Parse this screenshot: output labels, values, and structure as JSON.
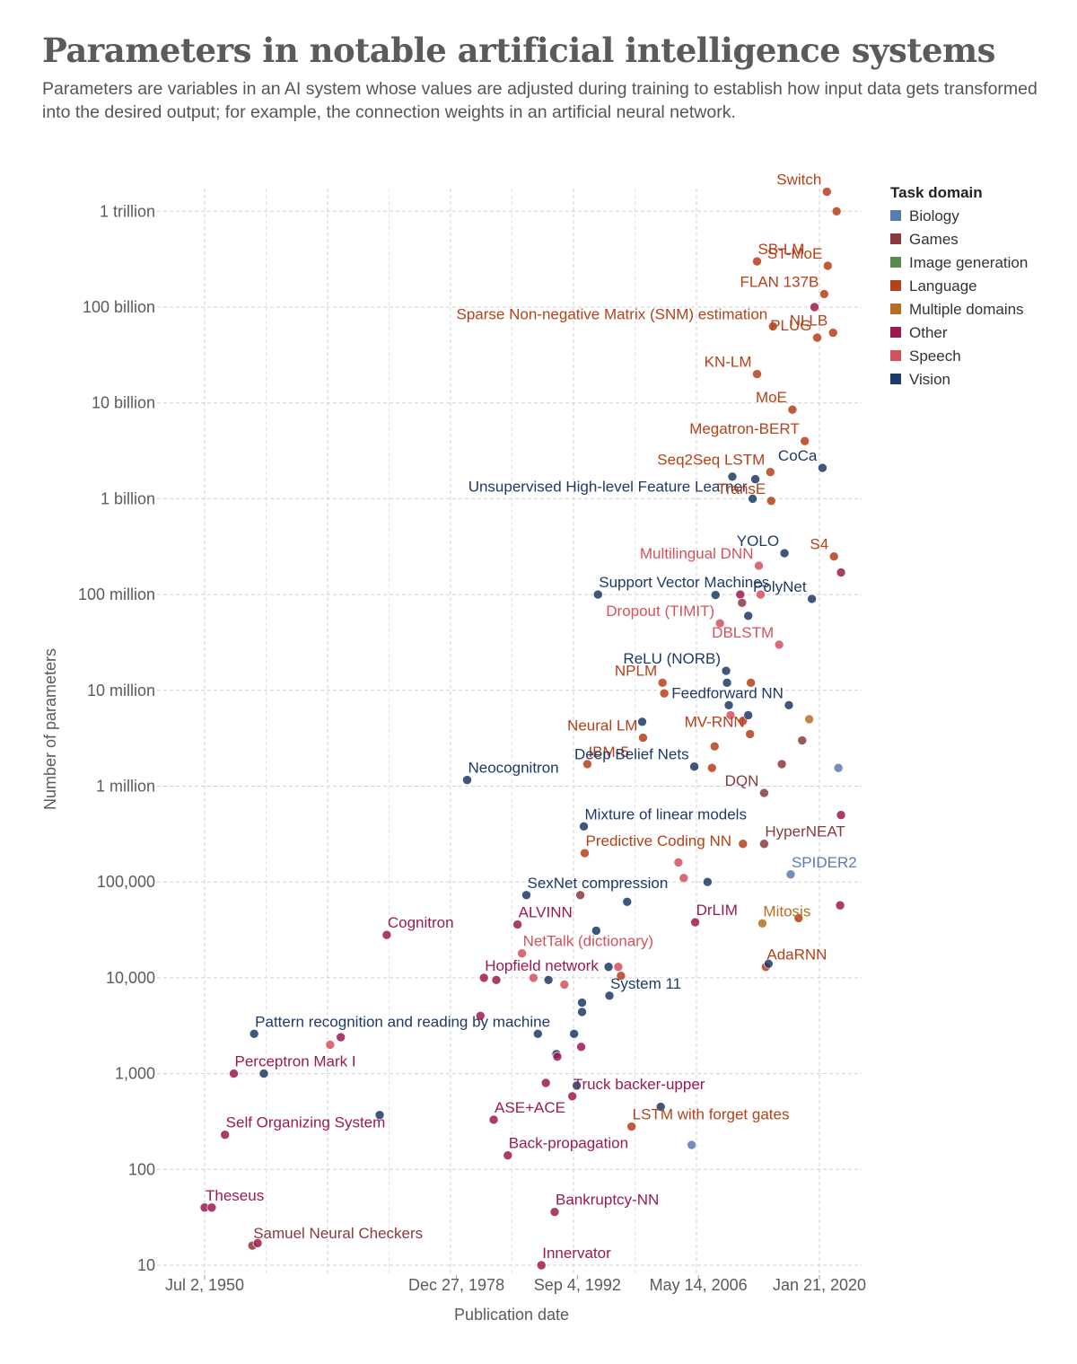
{
  "header": {
    "title": "Parameters in notable artificial intelligence systems",
    "subtitle": "Parameters are variables in an AI system whose values are adjusted during training to establish how input data gets transformed into the desired output; for example, the connection weights in an artificial neural network."
  },
  "chart_data": {
    "type": "scatter",
    "xlabel": "Publication date",
    "ylabel": "Number of parameters",
    "yscale": "log",
    "xlim": [
      "1949-06-01",
      "2022-12-31"
    ],
    "ylim": [
      10,
      1600000000000
    ],
    "x_ticks": [
      {
        "value": "1950-07-02",
        "label": "Jul 2, 1950"
      },
      {
        "value": "1978-12-27",
        "label": "Dec 27, 1978"
      },
      {
        "value": "1992-09-04",
        "label": "Sep 4, 1992"
      },
      {
        "value": "2006-05-14",
        "label": "May 14, 2006"
      },
      {
        "value": "2020-01-21",
        "label": "Jan 21, 2020"
      }
    ],
    "y_ticks": [
      {
        "value": 10,
        "label": "10"
      },
      {
        "value": 100,
        "label": "100"
      },
      {
        "value": 1000,
        "label": "1,000"
      },
      {
        "value": 10000,
        "label": "10,000"
      },
      {
        "value": 100000,
        "label": "100,000"
      },
      {
        "value": 1000000,
        "label": "1 million"
      },
      {
        "value": 10000000,
        "label": "10 million"
      },
      {
        "value": 100000000,
        "label": "100 million"
      },
      {
        "value": 1000000000,
        "label": "1 billion"
      },
      {
        "value": 10000000000,
        "label": "10 billion"
      },
      {
        "value": 100000000000,
        "label": "100 billion"
      },
      {
        "value": 1000000000000,
        "label": "1 trillion"
      }
    ],
    "grid": true,
    "legend": {
      "title": "Task domain",
      "placement": "top-right",
      "items": [
        {
          "name": "Biology",
          "color": "#5b7bb0"
        },
        {
          "name": "Games",
          "color": "#8a3a3f"
        },
        {
          "name": "Image generation",
          "color": "#5a8a4a"
        },
        {
          "name": "Language",
          "color": "#b5401a"
        },
        {
          "name": "Multiple domains",
          "color": "#b86e22"
        },
        {
          "name": "Other",
          "color": "#9c1a50"
        },
        {
          "name": "Speech",
          "color": "#d4515e"
        },
        {
          "name": "Vision",
          "color": "#1e3a66"
        }
      ]
    },
    "points": [
      {
        "x": 1950.5,
        "y": 40,
        "domain": "Other",
        "label": "Theseus"
      },
      {
        "x": 1951.3,
        "y": 40,
        "domain": "Other"
      },
      {
        "x": 1952.8,
        "y": 230,
        "domain": "Other",
        "label": "Self Organizing System"
      },
      {
        "x": 1953.8,
        "y": 1000,
        "domain": "Other",
        "label": "Perceptron Mark I"
      },
      {
        "x": 1955.9,
        "y": 16,
        "domain": "Games",
        "label": "Samuel Neural Checkers"
      },
      {
        "x": 1956.5,
        "y": 17,
        "domain": "Other"
      },
      {
        "x": 1956.1,
        "y": 2600,
        "domain": "Vision",
        "label": "Pattern recognition and reading by machine"
      },
      {
        "x": 1957.2,
        "y": 1000,
        "domain": "Vision"
      },
      {
        "x": 1964.7,
        "y": 2000,
        "domain": "Speech"
      },
      {
        "x": 1965.9,
        "y": 2400,
        "domain": "Other"
      },
      {
        "x": 1970.3,
        "y": 370,
        "domain": "Vision"
      },
      {
        "x": 1971.1,
        "y": 28000,
        "domain": "Other",
        "label": "Cognitron"
      },
      {
        "x": 1980.2,
        "y": 1160000,
        "domain": "Vision",
        "label": "Neocognitron"
      },
      {
        "x": 1981.7,
        "y": 4000,
        "domain": "Other"
      },
      {
        "x": 1982.1,
        "y": 10000,
        "domain": "Other",
        "label": "Hopfield network"
      },
      {
        "x": 1983.2,
        "y": 330,
        "domain": "Other",
        "label": "ASE+ACE"
      },
      {
        "x": 1983.5,
        "y": 9500,
        "domain": "Other"
      },
      {
        "x": 1984.8,
        "y": 140,
        "domain": "Other",
        "label": "Back-propagation"
      },
      {
        "x": 1985.9,
        "y": 36000,
        "domain": "Other",
        "label": "ALVINN"
      },
      {
        "x": 1986.4,
        "y": 18000,
        "domain": "Speech",
        "label": "NetTalk (dictionary)"
      },
      {
        "x": 1986.9,
        "y": 73000,
        "domain": "Vision",
        "label": "SexNet compression"
      },
      {
        "x": 1987.7,
        "y": 10000,
        "domain": "Speech"
      },
      {
        "x": 1988.2,
        "y": 2600,
        "domain": "Vision"
      },
      {
        "x": 1988.6,
        "y": 10,
        "domain": "Other",
        "label": "Innervator"
      },
      {
        "x": 1989.1,
        "y": 800,
        "domain": "Other"
      },
      {
        "x": 1989.4,
        "y": 9500,
        "domain": "Vision"
      },
      {
        "x": 1990.1,
        "y": 36,
        "domain": "Other",
        "label": "Bankruptcy-NN"
      },
      {
        "x": 1990.3,
        "y": 1600,
        "domain": "Vision"
      },
      {
        "x": 1990.4,
        "y": 1500,
        "domain": "Other"
      },
      {
        "x": 1991.2,
        "y": 8500,
        "domain": "Speech"
      },
      {
        "x": 1992.3,
        "y": 2600,
        "domain": "Vision"
      },
      {
        "x": 1992.1,
        "y": 580,
        "domain": "Other",
        "label": "Truck backer-upper"
      },
      {
        "x": 1992.6,
        "y": 750,
        "domain": "Vision"
      },
      {
        "x": 1993.0,
        "y": 73000,
        "domain": "Games"
      },
      {
        "x": 1993.1,
        "y": 1900,
        "domain": "Other"
      },
      {
        "x": 1993.2,
        "y": 4400,
        "domain": "Vision"
      },
      {
        "x": 1993.2,
        "y": 5500,
        "domain": "Vision"
      },
      {
        "x": 1993.4,
        "y": 380000,
        "domain": "Vision",
        "label": "Mixture of linear models"
      },
      {
        "x": 1993.5,
        "y": 200000,
        "domain": "Language",
        "label": "Predictive Coding NN"
      },
      {
        "x": 1994.8,
        "y": 31000,
        "domain": "Vision"
      },
      {
        "x": 1996.2,
        "y": 13000,
        "domain": "Vision"
      },
      {
        "x": 1996.3,
        "y": 6500,
        "domain": "Vision",
        "label": "System 11"
      },
      {
        "x": 1997.3,
        "y": 13000,
        "domain": "Speech"
      },
      {
        "x": 1997.6,
        "y": 10500,
        "domain": "Language"
      },
      {
        "x": 1998.3,
        "y": 62000,
        "domain": "Vision"
      },
      {
        "x": 1998.8,
        "y": 280,
        "domain": "Language",
        "label": "LSTM with forget gates"
      },
      {
        "x": 1993.8,
        "y": 1700000,
        "domain": "Language",
        "label": "IBM-5"
      },
      {
        "x": 1995.0,
        "y": 100000000,
        "domain": "Vision",
        "label": "Support Vector Machines"
      },
      {
        "x": 2000.1,
        "y": 3200000,
        "domain": "Language",
        "label": "Neural LM"
      },
      {
        "x": 2000.0,
        "y": 4700000,
        "domain": "Vision"
      },
      {
        "x": 2002.3,
        "y": 12000000,
        "domain": "Language",
        "label": "NPLM"
      },
      {
        "x": 2002.5,
        "y": 9300000,
        "domain": "Language"
      },
      {
        "x": 2002.1,
        "y": 450,
        "domain": "Vision"
      },
      {
        "x": 2004.1,
        "y": 160000,
        "domain": "Speech"
      },
      {
        "x": 2004.7,
        "y": 110000,
        "domain": "Speech"
      },
      {
        "x": 2005.6,
        "y": 180,
        "domain": "Biology"
      },
      {
        "x": 2005.9,
        "y": 1600000,
        "domain": "Vision",
        "label": "Deep Belief Nets"
      },
      {
        "x": 2006.0,
        "y": 38000,
        "domain": "Other",
        "label": "DrLIM"
      },
      {
        "x": 2007.4,
        "y": 100000,
        "domain": "Vision"
      },
      {
        "x": 2007.9,
        "y": 1550000,
        "domain": "Language"
      },
      {
        "x": 2008.2,
        "y": 2600000,
        "domain": "Language"
      },
      {
        "x": 2008.8,
        "y": 50000000,
        "domain": "Speech",
        "label": "Dropout (TIMIT)"
      },
      {
        "x": 2008.3,
        "y": 99000000,
        "domain": "Vision"
      },
      {
        "x": 2009.6,
        "y": 12000000,
        "domain": "Vision"
      },
      {
        "x": 2009.5,
        "y": 16000000,
        "domain": "Vision",
        "label": "ReLU (NORB)"
      },
      {
        "x": 2009.8,
        "y": 7000000,
        "domain": "Vision"
      },
      {
        "x": 2010.0,
        "y": 5500000,
        "domain": "Speech"
      },
      {
        "x": 2010.2,
        "y": 1700000000,
        "domain": "Vision"
      },
      {
        "x": 2011.1,
        "y": 100000000,
        "domain": "Other"
      },
      {
        "x": 2011.3,
        "y": 82000000,
        "domain": "Games"
      },
      {
        "x": 2011.4,
        "y": 250000,
        "domain": "Language"
      },
      {
        "x": 2011.4,
        "y": 4800000,
        "domain": "Language"
      },
      {
        "x": 2012.0,
        "y": 5500000,
        "domain": "Vision"
      },
      {
        "x": 2012.0,
        "y": 60000000,
        "domain": "Vision"
      },
      {
        "x": 2012.2,
        "y": 3500000,
        "domain": "Language",
        "label": "MV-RNN"
      },
      {
        "x": 2012.3,
        "y": 12000000,
        "domain": "Language"
      },
      {
        "x": 2012.5,
        "y": 1000000000,
        "domain": "Vision",
        "label": "Unsupervised High-level Feature Learner"
      },
      {
        "x": 2012.8,
        "y": 1600000000,
        "domain": "Vision"
      },
      {
        "x": 2013.0,
        "y": 20000000000,
        "domain": "Language",
        "label": "KN-LM"
      },
      {
        "x": 2013.0,
        "y": 300000000000,
        "domain": "Language",
        "label": "SB-LM"
      },
      {
        "x": 2013.2,
        "y": 200000000,
        "domain": "Speech",
        "label": "Multilingual DNN"
      },
      {
        "x": 2013.4,
        "y": 100000000,
        "domain": "Speech"
      },
      {
        "x": 2013.6,
        "y": 37000,
        "domain": "Multiple domains",
        "label": "Mitosis"
      },
      {
        "x": 2013.8,
        "y": 250000,
        "domain": "Games",
        "label": "HyperNEAT"
      },
      {
        "x": 2013.8,
        "y": 850000,
        "domain": "Games",
        "label": "DQN"
      },
      {
        "x": 2014.0,
        "y": 13000,
        "domain": "Language",
        "label": "AdaRNN"
      },
      {
        "x": 2014.3,
        "y": 14000,
        "domain": "Vision"
      },
      {
        "x": 2014.5,
        "y": 1900000000,
        "domain": "Language",
        "label": "Seq2Seq LSTM"
      },
      {
        "x": 2014.6,
        "y": 950000000,
        "domain": "Language",
        "label": "TransE"
      },
      {
        "x": 2014.8,
        "y": 63000000000,
        "domain": "Language",
        "label": "Sparse Non-negative Matrix (SNM) estimation"
      },
      {
        "x": 2015.5,
        "y": 30000000,
        "domain": "Speech",
        "label": "DBLSTM"
      },
      {
        "x": 2015.8,
        "y": 1700000,
        "domain": "Games"
      },
      {
        "x": 2016.1,
        "y": 270000000,
        "domain": "Vision",
        "label": "YOLO"
      },
      {
        "x": 2016.6,
        "y": 7000000,
        "domain": "Vision",
        "label": "Feedforward NN"
      },
      {
        "x": 2016.8,
        "y": 120000,
        "domain": "Biology",
        "label": "SPIDER2"
      },
      {
        "x": 2017.0,
        "y": 8500000000,
        "domain": "Language",
        "label": "MoE"
      },
      {
        "x": 2017.7,
        "y": 42000,
        "domain": "Language"
      },
      {
        "x": 2018.1,
        "y": 3000000,
        "domain": "Games"
      },
      {
        "x": 2018.4,
        "y": 4000000000,
        "domain": "Language",
        "label": "Megatron-BERT"
      },
      {
        "x": 2018.9,
        "y": 5000000,
        "domain": "Multiple domains"
      },
      {
        "x": 2019.2,
        "y": 90000000,
        "domain": "Vision",
        "label": "PolyNet"
      },
      {
        "x": 2019.5,
        "y": 100000000000,
        "domain": "Other"
      },
      {
        "x": 2019.8,
        "y": 48000000000,
        "domain": "Language",
        "label": "PLUG"
      },
      {
        "x": 2020.6,
        "y": 137000000000,
        "domain": "Language",
        "label": "FLAN 137B"
      },
      {
        "x": 2020.9,
        "y": 1600000000000,
        "domain": "Language",
        "label": "Switch"
      },
      {
        "x": 2020.4,
        "y": 2100000000,
        "domain": "Vision",
        "label": "CoCa"
      },
      {
        "x": 2021.0,
        "y": 270000000000,
        "domain": "Language",
        "label": "ST-MoE"
      },
      {
        "x": 2021.6,
        "y": 54000000000,
        "domain": "Language",
        "label": "NLLB"
      },
      {
        "x": 2021.7,
        "y": 250000000,
        "domain": "Language",
        "label": "S4"
      },
      {
        "x": 2022.0,
        "y": 1000000000000,
        "domain": "Language"
      },
      {
        "x": 2022.5,
        "y": 170000000,
        "domain": "Other"
      },
      {
        "x": 2022.4,
        "y": 57000,
        "domain": "Other"
      },
      {
        "x": 2022.5,
        "y": 500000,
        "domain": "Other"
      },
      {
        "x": 2022.2,
        "y": 1550000,
        "domain": "Biology"
      }
    ]
  }
}
